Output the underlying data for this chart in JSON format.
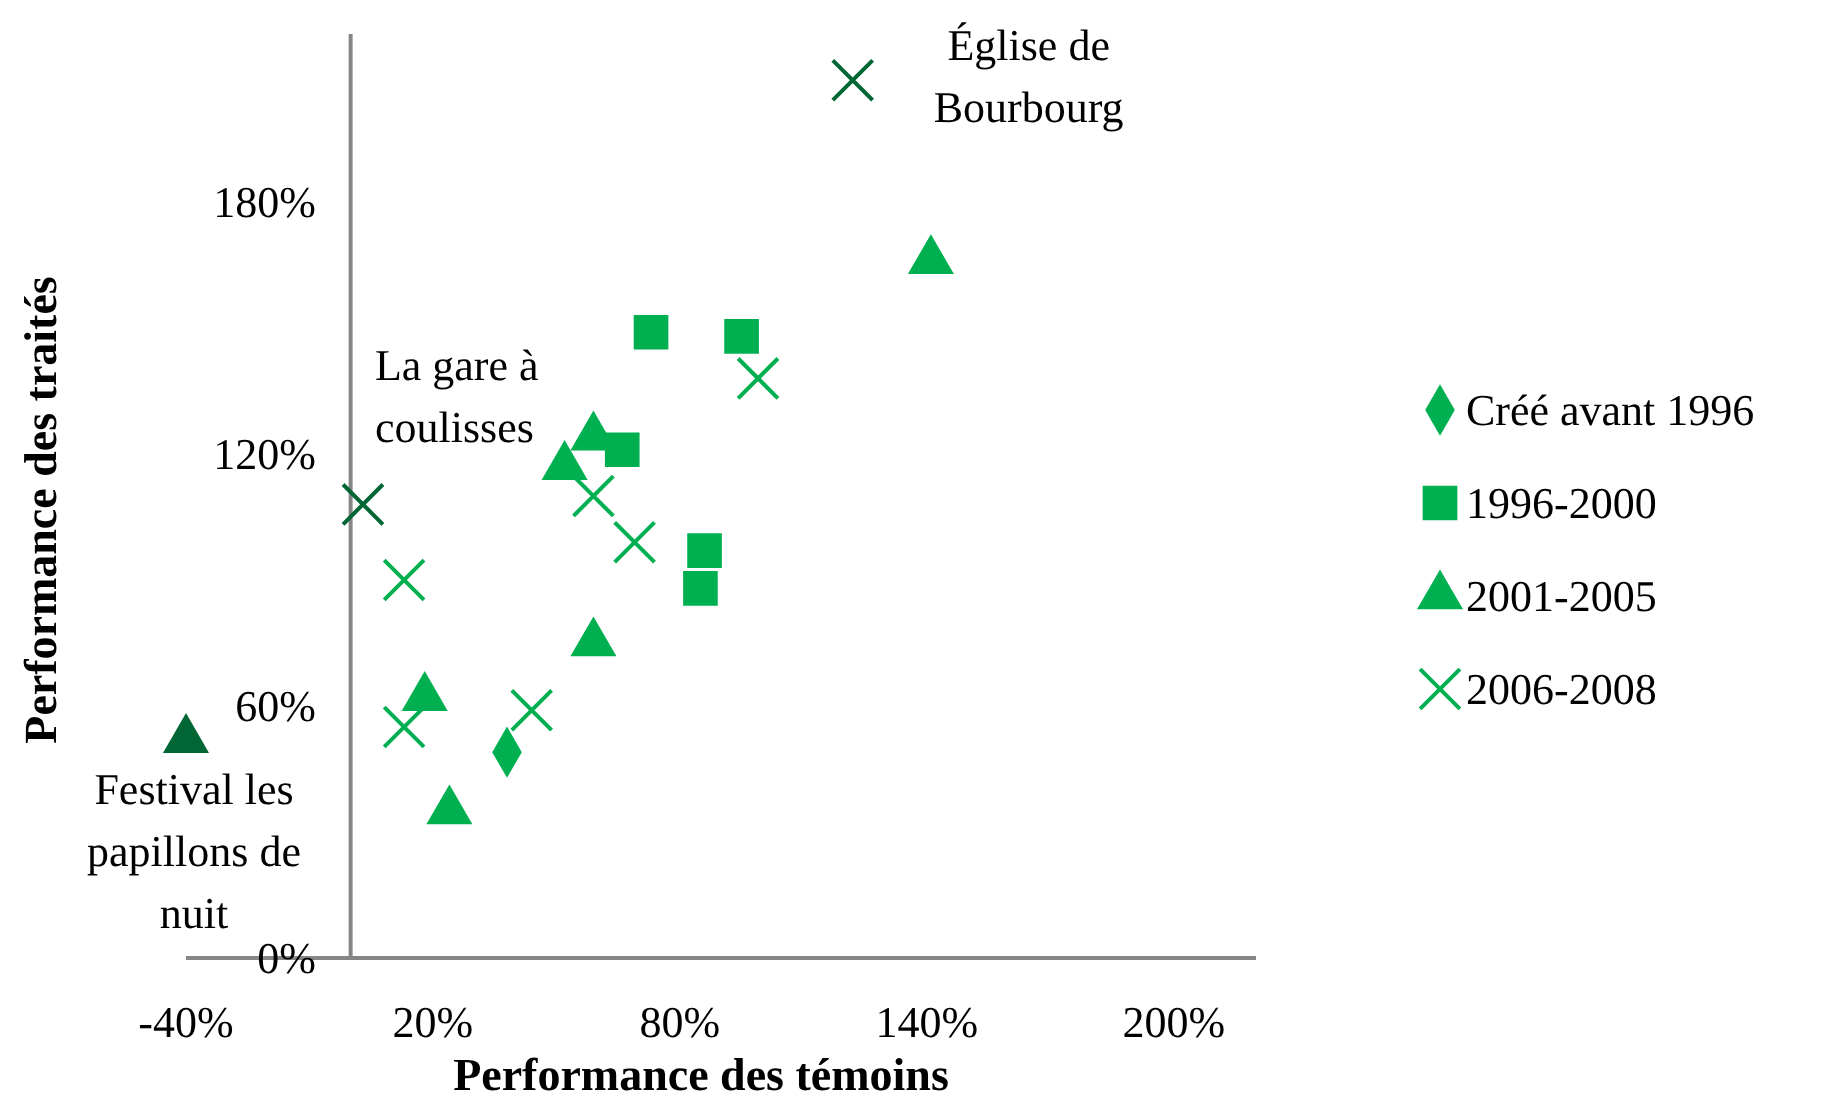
{
  "chart_data": {
    "type": "scatter",
    "xlabel": "Performance des témoins",
    "ylabel": "Performance des traités",
    "xlim": [
      -40,
      220
    ],
    "ylim": [
      0,
      220
    ],
    "xticks": [
      {
        "value": -40,
        "label": "-40%"
      },
      {
        "value": 20,
        "label": "20%"
      },
      {
        "value": 80,
        "label": "80%"
      },
      {
        "value": 140,
        "label": "140%"
      },
      {
        "value": 200,
        "label": "200%"
      }
    ],
    "yticks": [
      {
        "value": 0,
        "label": "0%"
      },
      {
        "value": 60,
        "label": "60%"
      },
      {
        "value": 120,
        "label": "120%"
      },
      {
        "value": 180,
        "label": "180%"
      }
    ],
    "grid": false,
    "legend": "right",
    "series": [
      {
        "name": "Créé avant 1996",
        "marker": "diamond",
        "color": "#00b050",
        "x": [
          38
        ],
        "values": [
          49
        ]
      },
      {
        "name": "1996-2000",
        "marker": "square",
        "color": "#00b050",
        "x": [
          73,
          66,
          95,
          86,
          85
        ],
        "values": [
          149,
          121,
          148,
          97,
          88
        ]
      },
      {
        "name": "2001-2005",
        "marker": "triangle",
        "color": "#00b050",
        "colors": [
          "#00b050",
          "#00b050",
          "#00b050",
          "#00b050",
          "#00b050",
          "#00b050",
          "#006633"
        ],
        "x": [
          141,
          59,
          52,
          59,
          18,
          24,
          -40
        ],
        "values": [
          166,
          124,
          117,
          75,
          62,
          35,
          52
        ]
      },
      {
        "name": "2006-2008",
        "marker": "cross",
        "color": "#00b050",
        "colors": [
          "#006633",
          "#00b050",
          "#006633",
          "#00b050",
          "#00b050",
          "#00b050",
          "#00b050",
          "#00b050"
        ],
        "x": [
          122,
          99,
          3,
          59,
          69,
          13,
          44,
          13
        ],
        "values": [
          209,
          138,
          108,
          110,
          99,
          90,
          59,
          55
        ]
      }
    ],
    "annotations": [
      {
        "text": "Église de\nBourbourg",
        "x": 122,
        "y": 209
      },
      {
        "text": "La gare à\ncoulisses",
        "x": 3,
        "y": 108
      },
      {
        "text": "Festival les\npapillons de\nnuit",
        "x": -40,
        "y": 52
      }
    ]
  }
}
